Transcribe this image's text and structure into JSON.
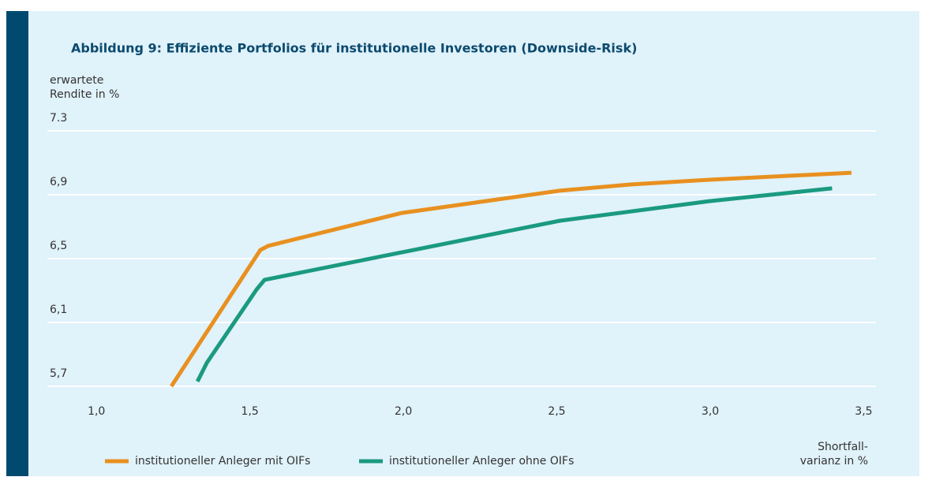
{
  "chart_data": {
    "type": "line",
    "title": "Abbildung 9: Effiziente Portfolios für institutionelle Investoren (Downside-Risk)",
    "y_label": [
      "erwartete",
      "Rendite in %"
    ],
    "x_label": [
      "Shortfall-",
      "varianz in %"
    ],
    "xlim": [
      0.84,
      3.54
    ],
    "ylim": [
      5.7,
      7.3
    ],
    "xticks": [
      {
        "value": 1.0,
        "label": "1,0"
      },
      {
        "value": 1.5,
        "label": "1,5"
      },
      {
        "value": 2.0,
        "label": "2,0"
      },
      {
        "value": 2.5,
        "label": "2,5"
      },
      {
        "value": 3.0,
        "label": "3,0"
      },
      {
        "value": 3.5,
        "label": "3,5"
      }
    ],
    "yticks": [
      7.3,
      {
        "value": 6.9,
        "label": "6,9"
      },
      {
        "value": 6.5,
        "label": "6,5"
      },
      {
        "value": 6.1,
        "label": "6,1"
      },
      {
        "value": 5.7,
        "label": "5,7"
      }
    ],
    "grid": true,
    "series": [
      {
        "name": "institutioneller Anleger mit OIFs",
        "color": "#e8901f",
        "x": [
          1.244,
          1.534,
          1.56,
          1.995,
          2.509,
          2.74,
          2.997,
          3.46
        ],
        "values": [
          5.7,
          6.554,
          6.58,
          6.786,
          6.925,
          6.964,
          6.994,
          7.038
        ]
      },
      {
        "name": "institutioneller Anleger ohne OIFs",
        "color": "#1a9a80",
        "x": [
          1.329,
          1.36,
          1.522,
          1.548,
          1.997,
          2.51,
          2.998,
          3.397
        ],
        "values": [
          5.73,
          5.848,
          6.307,
          6.367,
          6.54,
          6.737,
          6.86,
          6.94
        ]
      }
    ]
  }
}
